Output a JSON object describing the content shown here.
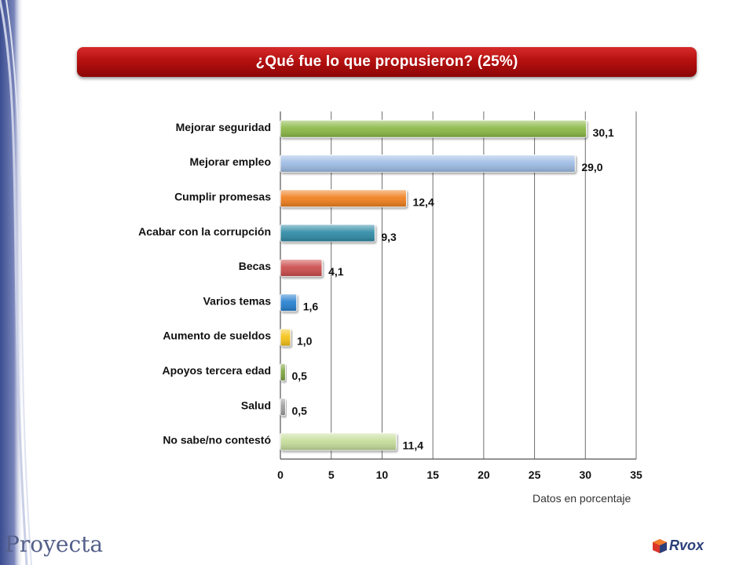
{
  "title": "¿Qué fue lo que propusieron? (25%)",
  "footnote": "Datos en porcentaje",
  "brand_left": "Proyecta",
  "brand_right": "Rvox",
  "colors": {
    "banner": "#b20f0f",
    "bars": [
      "#8ab845",
      "#9dbbe4",
      "#f07f1e",
      "#2f8aa6",
      "#cc4c4c",
      "#2680d0",
      "#f5c317",
      "#7ba33e",
      "#9b9b9b",
      "#c5dd9a"
    ]
  },
  "chart_data": {
    "type": "bar",
    "orientation": "horizontal",
    "categories": [
      "Mejorar seguridad",
      "Mejorar empleo",
      "Cumplir promesas",
      "Acabar con la corrupción",
      "Becas",
      "Varios temas",
      "Aumento de sueldos",
      "Apoyos tercera edad",
      "Salud",
      "No sabe/no contestó"
    ],
    "values": [
      30.1,
      29.0,
      12.4,
      9.3,
      4.1,
      1.6,
      1.0,
      0.5,
      0.5,
      11.4
    ],
    "value_labels": [
      "30,1",
      "29,0",
      "12,4",
      "9,3",
      "4,1",
      "1,6",
      "1,0",
      "0,5",
      "0,5",
      "11,4"
    ],
    "xlim": [
      0,
      35
    ],
    "xticks": [
      0,
      5,
      10,
      15,
      20,
      25,
      30,
      35
    ],
    "grid": "vertical",
    "legend": "none"
  }
}
